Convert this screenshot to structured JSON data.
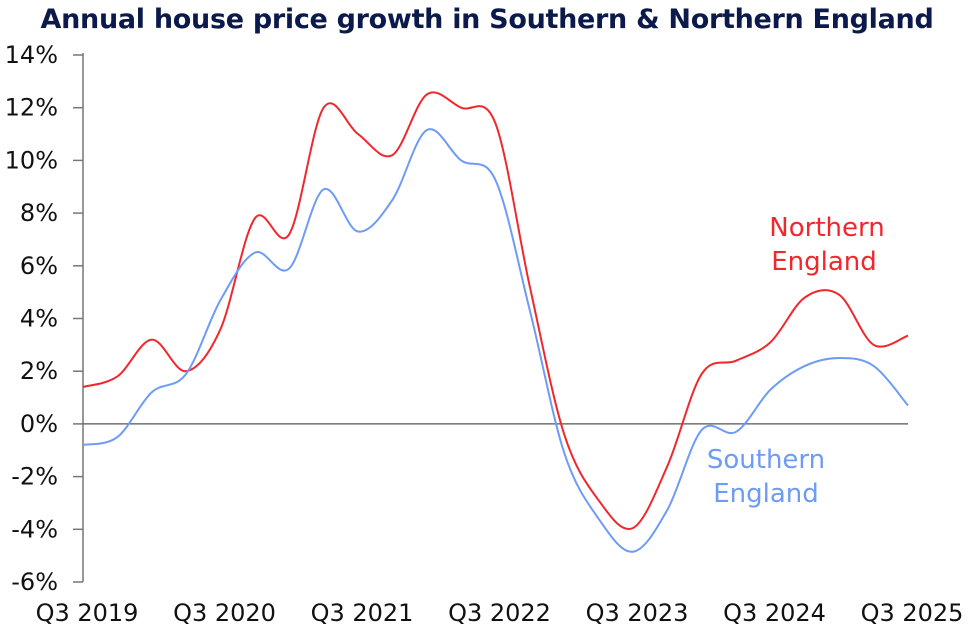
{
  "chart_data": {
    "type": "line",
    "title": "Annual house price growth in Southern & Northern England",
    "xlabel": "",
    "ylabel": "",
    "x_ticks": [
      "Q3 2019",
      "Q3 2020",
      "Q3 2021",
      "Q3 2022",
      "Q3 2023",
      "Q3 2024",
      "Q3 2025"
    ],
    "y_ticks": [
      "14%",
      "12%",
      "10%",
      "8%",
      "6%",
      "4%",
      "2%",
      "0%",
      "-2%",
      "-4%",
      "-6%"
    ],
    "ylim": [
      -6,
      14
    ],
    "x": [
      "Q3 2019",
      "Q4 2019",
      "Q1 2020",
      "Q2 2020",
      "Q3 2020",
      "Q4 2020",
      "Q1 2021",
      "Q2 2021",
      "Q3 2021",
      "Q4 2021",
      "Q1 2022",
      "Q2 2022",
      "Q3 2022",
      "Q4 2022",
      "Q1 2023",
      "Q2 2023",
      "Q3 2023",
      "Q4 2023",
      "Q1 2024",
      "Q2 2024",
      "Q3 2024",
      "Q4 2024",
      "Q1 2025",
      "Q2 2025",
      "Q3 2025"
    ],
    "series": [
      {
        "name": "Northern England",
        "label_lines": [
          "Northern",
          "England"
        ],
        "color": "#f0282d",
        "values": [
          1.4,
          1.8,
          3.2,
          2.0,
          3.6,
          7.8,
          7.2,
          12.0,
          11.0,
          10.2,
          12.5,
          12.0,
          11.4,
          5.2,
          -0.4,
          -2.9,
          -3.95,
          -1.6,
          1.9,
          2.4,
          3.1,
          4.8,
          4.9,
          3.0,
          3.35
        ]
      },
      {
        "name": "Southern England",
        "label_lines": [
          "Southern",
          "England"
        ],
        "color": "#6e9bf5",
        "values": [
          -0.8,
          -0.5,
          1.2,
          1.9,
          4.7,
          6.5,
          5.9,
          8.9,
          7.3,
          8.5,
          11.15,
          10.0,
          9.25,
          4.3,
          -1.1,
          -3.6,
          -4.85,
          -3.26,
          -0.23,
          -0.3,
          1.3,
          2.2,
          2.5,
          2.2,
          0.7
        ]
      }
    ],
    "grid": false,
    "zero_line": true,
    "legend": "inline labels"
  }
}
